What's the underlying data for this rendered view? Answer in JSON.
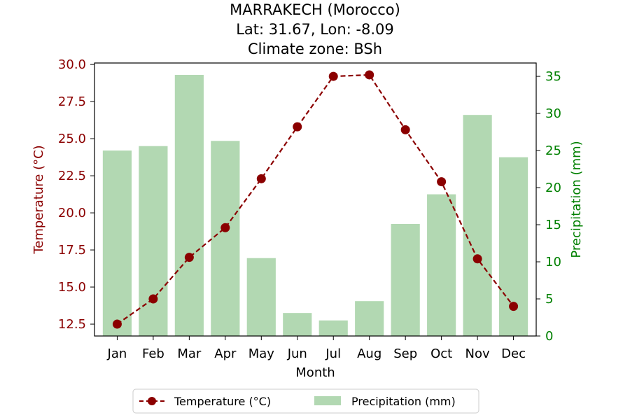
{
  "chart_data": {
    "type": "bar+line",
    "title_lines": [
      "MARRAKECH (Morocco)",
      "Lat: 31.67, Lon: -8.09",
      "Climate zone: BSh"
    ],
    "xlabel": "Month",
    "categories": [
      "Jan",
      "Feb",
      "Mar",
      "Apr",
      "May",
      "Jun",
      "Jul",
      "Aug",
      "Sep",
      "Oct",
      "Nov",
      "Dec"
    ],
    "y_left": {
      "label": "Temperature (°C)",
      "lim": [
        11.7,
        30.1
      ],
      "ticks": [
        12.5,
        15.0,
        17.5,
        20.0,
        22.5,
        25.0,
        27.5,
        30.0
      ],
      "tick_labels": [
        "12.5",
        "15.0",
        "17.5",
        "20.0",
        "22.5",
        "25.0",
        "27.5",
        "30.0"
      ],
      "color": "#8b0000"
    },
    "y_right": {
      "label": "Precipitation (mm)",
      "lim": [
        0,
        36.8
      ],
      "ticks": [
        0,
        5,
        10,
        15,
        20,
        25,
        30,
        35
      ],
      "tick_labels": [
        "0",
        "5",
        "10",
        "15",
        "20",
        "25",
        "30",
        "35"
      ],
      "color": "#008000"
    },
    "series": [
      {
        "name": "Temperature (°C)",
        "type": "line",
        "axis": "left",
        "color": "#8b0000",
        "style": "dashed",
        "marker": "circle",
        "values": [
          12.5,
          14.2,
          17.0,
          19.0,
          22.3,
          25.8,
          29.2,
          29.3,
          25.6,
          22.1,
          16.9,
          13.7
        ]
      },
      {
        "name": "Precipitation (mm)",
        "type": "bar",
        "axis": "right",
        "color": "#b2d8b2",
        "values": [
          25.0,
          25.6,
          35.2,
          26.3,
          10.5,
          3.1,
          2.1,
          4.7,
          15.1,
          19.1,
          29.8,
          24.1
        ]
      }
    ],
    "legend": {
      "placement": "bottom-center",
      "columns": 2
    },
    "grid": false
  }
}
